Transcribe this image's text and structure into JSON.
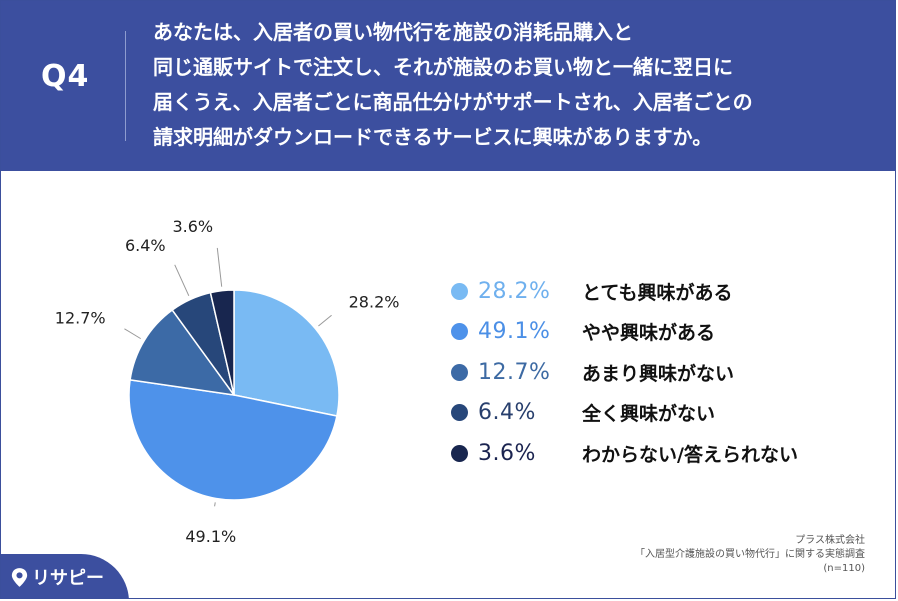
{
  "header": {
    "qlabel": "Q4",
    "question_lines": [
      "あなたは、入居者の買い物代行を施設の消耗品購入と",
      "同じ通販サイトで注文し、それが施設のお買い物と一緒に翌日に",
      "届くうえ、入居者ごとに商品仕分けがサポートされ、入居者ごとの",
      "請求明細がダウンロードできるサービスに興味がありますか。"
    ]
  },
  "chart_data": {
    "type": "pie",
    "start": "12 o'clock",
    "direction": "clockwise",
    "categories": [
      "とても興味がある",
      "やや興味がある",
      "あまり興味がない",
      "全く興味がない",
      "わからない/答えられない"
    ],
    "values": [
      28.2,
      49.1,
      12.7,
      6.4,
      3.6
    ],
    "value_labels": [
      "28.2%",
      "49.1%",
      "12.7%",
      "6.4%",
      "3.6%"
    ],
    "colors": [
      "#79baf3",
      "#4e92ea",
      "#3c6aa6",
      "#27477a",
      "#18264f"
    ],
    "legend_placement": "right"
  },
  "legend": {
    "pct_colors": [
      "#6fb0ee",
      "#4b8fe6",
      "#3d6aa3",
      "#283f6d",
      "#1b2450"
    ]
  },
  "source": {
    "line1": "プラス株式会社",
    "line2": "「入居型介護施設の買い物代行」に関する実態調査",
    "line3": "(n=110)"
  },
  "logo": {
    "text": "リサピー",
    "icon": "map-pin-icon"
  }
}
